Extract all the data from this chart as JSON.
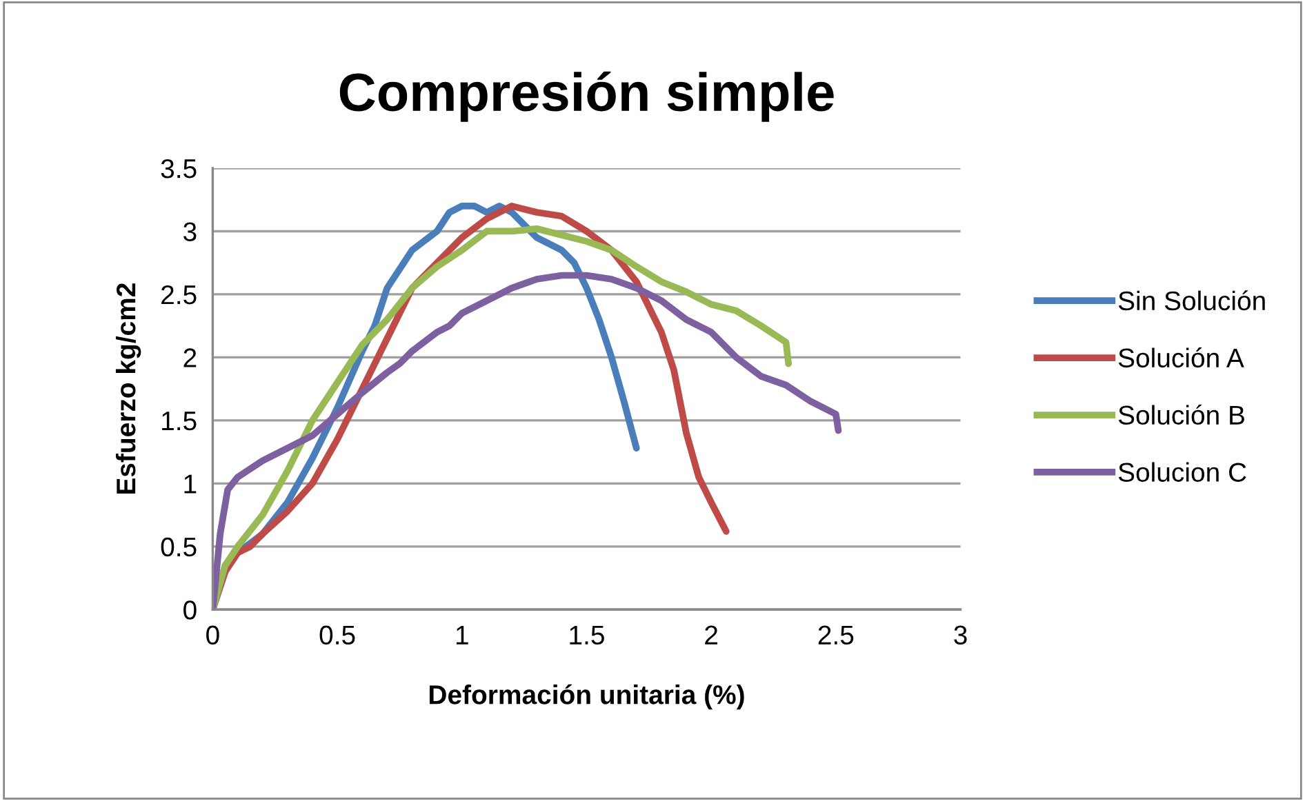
{
  "chart_data": {
    "type": "line",
    "title": "Compresión simple",
    "xlabel": "Deformación unitaria (%)",
    "ylabel": "Esfuerzo kg/cm2",
    "xlim": [
      0,
      3
    ],
    "xticks": [
      0,
      0.5,
      1,
      1.5,
      2,
      2.5,
      3
    ],
    "ylim": [
      0,
      3.5
    ],
    "yticks": [
      0,
      0.5,
      1,
      1.5,
      2,
      2.5,
      3,
      3.5
    ],
    "grid": "y",
    "legend": "right",
    "marker": "none",
    "line_style": "solid",
    "series": [
      {
        "name": "Sin Solución",
        "color": "#4a7ebb",
        "x": [
          0,
          0.05,
          0.1,
          0.2,
          0.3,
          0.4,
          0.5,
          0.6,
          0.65,
          0.7,
          0.75,
          0.8,
          0.9,
          0.95,
          1.0,
          1.05,
          1.1,
          1.15,
          1.2,
          1.3,
          1.4,
          1.45,
          1.5,
          1.55,
          1.6,
          1.65,
          1.7
        ],
        "values": [
          0,
          0.35,
          0.45,
          0.6,
          0.85,
          1.2,
          1.6,
          2.05,
          2.25,
          2.55,
          2.7,
          2.85,
          3.0,
          3.15,
          3.2,
          3.2,
          3.15,
          3.2,
          3.15,
          2.95,
          2.85,
          2.75,
          2.55,
          2.3,
          2.0,
          1.65,
          1.28
        ]
      },
      {
        "name": "Solución A",
        "color": "#be4b48",
        "x": [
          0,
          0.05,
          0.1,
          0.15,
          0.2,
          0.3,
          0.4,
          0.5,
          0.6,
          0.7,
          0.8,
          0.9,
          1.0,
          1.1,
          1.2,
          1.3,
          1.4,
          1.5,
          1.6,
          1.7,
          1.8,
          1.85,
          1.9,
          1.95,
          2.0,
          2.06
        ],
        "values": [
          0,
          0.3,
          0.45,
          0.5,
          0.6,
          0.78,
          1.0,
          1.35,
          1.75,
          2.15,
          2.55,
          2.75,
          2.95,
          3.1,
          3.2,
          3.15,
          3.12,
          3.0,
          2.85,
          2.6,
          2.2,
          1.9,
          1.4,
          1.05,
          0.85,
          0.62
        ]
      },
      {
        "name": "Solución B",
        "color": "#98b954",
        "x": [
          0,
          0.05,
          0.1,
          0.2,
          0.3,
          0.4,
          0.5,
          0.6,
          0.7,
          0.8,
          0.9,
          1.0,
          1.1,
          1.2,
          1.3,
          1.4,
          1.5,
          1.6,
          1.7,
          1.8,
          1.9,
          2.0,
          2.1,
          2.2,
          2.3,
          2.31
        ],
        "values": [
          0,
          0.35,
          0.5,
          0.75,
          1.1,
          1.5,
          1.8,
          2.1,
          2.3,
          2.55,
          2.72,
          2.85,
          3.0,
          3.0,
          3.02,
          2.97,
          2.92,
          2.85,
          2.72,
          2.6,
          2.52,
          2.42,
          2.37,
          2.25,
          2.12,
          1.95
        ]
      },
      {
        "name": "Solucion C",
        "color": "#7d60a0",
        "x": [
          0,
          0.03,
          0.06,
          0.1,
          0.2,
          0.3,
          0.4,
          0.5,
          0.6,
          0.7,
          0.75,
          0.8,
          0.9,
          0.95,
          1.0,
          1.1,
          1.2,
          1.3,
          1.4,
          1.5,
          1.6,
          1.7,
          1.8,
          1.9,
          2.0,
          2.1,
          2.2,
          2.3,
          2.4,
          2.5,
          2.51
        ],
        "values": [
          0,
          0.6,
          0.95,
          1.05,
          1.18,
          1.28,
          1.38,
          1.55,
          1.72,
          1.88,
          1.95,
          2.05,
          2.2,
          2.25,
          2.35,
          2.45,
          2.55,
          2.62,
          2.65,
          2.65,
          2.62,
          2.55,
          2.45,
          2.3,
          2.2,
          2.0,
          1.85,
          1.78,
          1.65,
          1.55,
          1.42
        ]
      }
    ]
  }
}
